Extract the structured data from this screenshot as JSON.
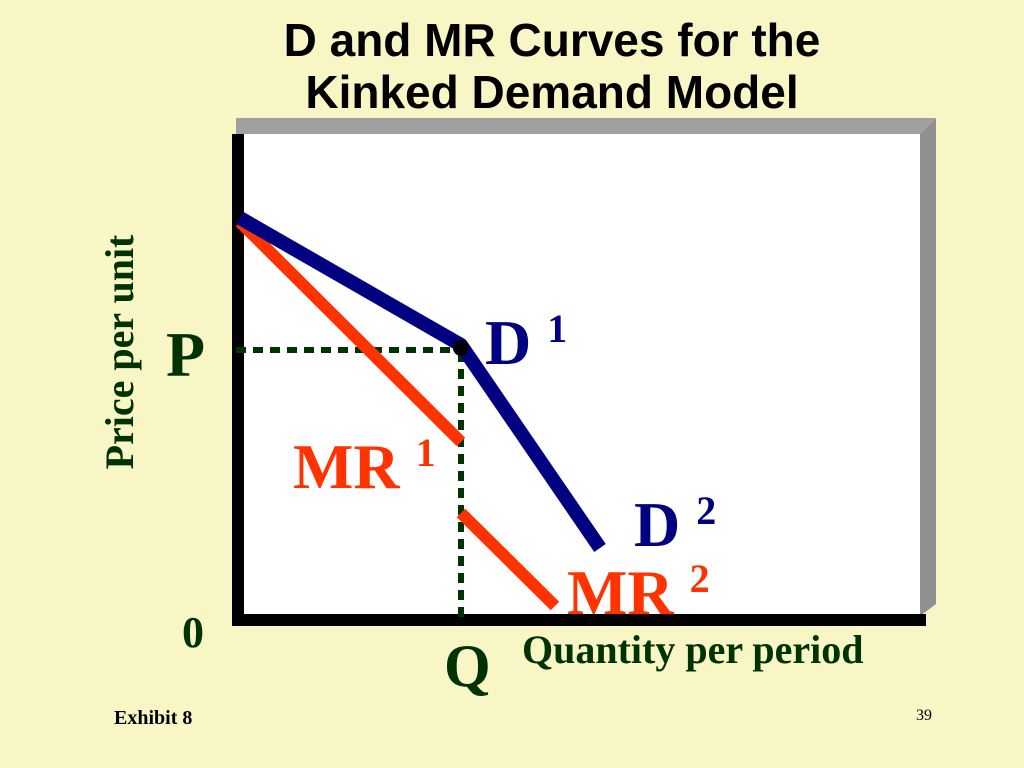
{
  "title": {
    "line1": "D and MR Curves for the",
    "line2": "Kinked Demand Model"
  },
  "axes": {
    "y_label": "Price per unit",
    "x_label": "Quantity per period",
    "origin": "0",
    "price_tick": "P",
    "quantity_tick": "Q"
  },
  "curves": {
    "d1": {
      "label": "D",
      "superscript": "1"
    },
    "d2": {
      "label": "D",
      "superscript": "2"
    },
    "mr1": {
      "label": "MR",
      "superscript": "1"
    },
    "mr2": {
      "label": "MR",
      "superscript": "2"
    }
  },
  "colors": {
    "background": "#f9f6c6",
    "plot_area": "#ffffff",
    "frame_shadow": "#a0a0a0",
    "axis": "#000000",
    "demand": "#000080",
    "marginal_revenue": "#ff3300",
    "axis_text": "#003300",
    "guide_lines": "#003300"
  },
  "footer": {
    "exhibit": "Exhibit 8",
    "page": "39"
  }
}
